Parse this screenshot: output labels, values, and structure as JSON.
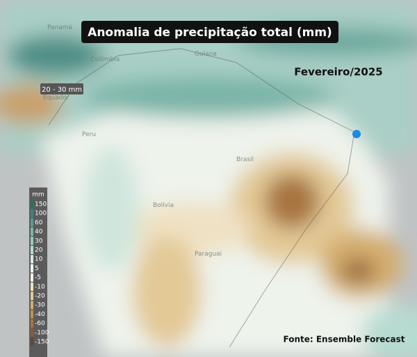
{
  "header": {
    "title": "Anomalia de precipitação total (mm)",
    "period": "Fevereiro/2025"
  },
  "source": "Fonte: Ensemble Forecast",
  "tooltip": "20 - 30 mm",
  "places": [
    "Panamá",
    "Colômbia",
    "Equador",
    "Peru",
    "Guiana",
    "Brasil",
    "Bolívia",
    "Paraguai"
  ],
  "legend": {
    "unit": "mm",
    "items": [
      {
        "label": "150",
        "color": "#2f6e66"
      },
      {
        "label": "100",
        "color": "#3e8579"
      },
      {
        "label": "60",
        "color": "#5a9c90"
      },
      {
        "label": "40",
        "color": "#7ab5a8"
      },
      {
        "label": "30",
        "color": "#98c8bc"
      },
      {
        "label": "20",
        "color": "#b6dbd1"
      },
      {
        "label": "10",
        "color": "#d4ece6"
      },
      {
        "label": "5",
        "color": "#eef7f4"
      },
      {
        "label": "-5",
        "color": "#f7f3e8"
      },
      {
        "label": "-10",
        "color": "#efe2c4"
      },
      {
        "label": "-20",
        "color": "#e3c996"
      },
      {
        "label": "-30",
        "color": "#d4ad6e"
      },
      {
        "label": "-40",
        "color": "#c3914d"
      },
      {
        "label": "-60",
        "color": "#a87440"
      },
      {
        "label": "-100",
        "color": "#86603e"
      },
      {
        "label": "-150",
        "color": "#5e4a3a"
      }
    ]
  }
}
